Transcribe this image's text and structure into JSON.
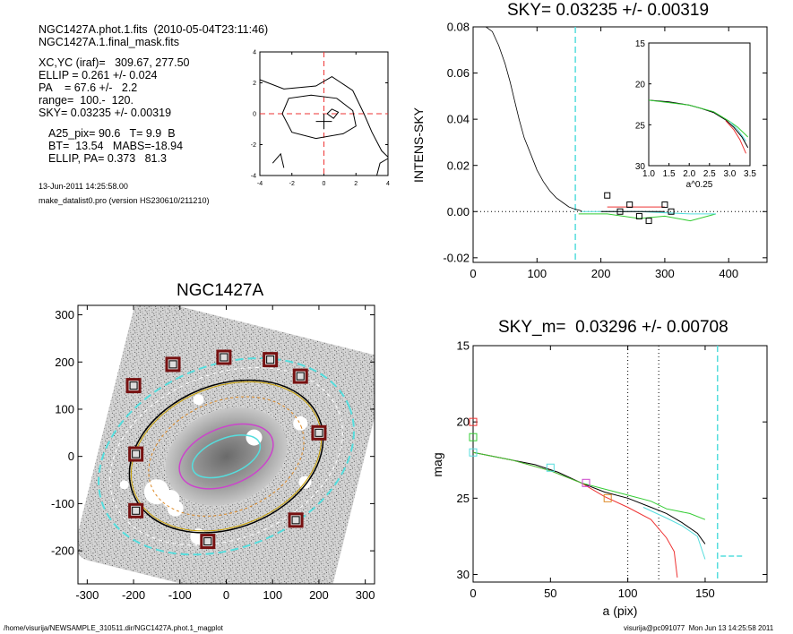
{
  "header": {
    "line1": "NGC1427A.phot.1.fits  (2010-05-04T23:11:46)",
    "line2": "NGC1427A.1.final_mask.fits",
    "line3": "XC,YC (iraf)=   309.67, 277.50",
    "line4": "ELLIP = 0.261 +/- 0.024",
    "line5": "PA    = 67.6 +/-   2.2",
    "line6": "range=  100.-  120.",
    "line7": "SKY= 0.03235 +/- 0.00319",
    "line8": "A25_pix= 90.6   T= 9.9  B",
    "line9": "BT=  13.54   MABS=-18.94",
    "line10": "ELLIP, PA= 0.373   81.3",
    "date": "13-Jun-2011 14:25:58.00",
    "program": "make_datalist0.pro (version HS230610/211210)"
  },
  "footer": {
    "path": "/home/visurija/NEWSAMPLE_310511.dir/NGC1427A.phot.1_magplot",
    "user": "visurija@pc091077  Mon Jun 13 14:25:58 2011"
  },
  "colors": {
    "cyan": "#55dddd",
    "red": "#ee3333",
    "green": "#33cc33",
    "magenta": "#cc44cc",
    "orange": "#dd8822",
    "dark_red": "#771111"
  },
  "chart_data": [
    {
      "id": "contour",
      "type": "contour",
      "xlim": [
        -4,
        4
      ],
      "ylim": [
        -4,
        4
      ],
      "xticks": [
        "-4",
        "-2",
        "0",
        "2",
        "4"
      ],
      "yticks": [
        "-4",
        "-2",
        "0",
        "2",
        "4"
      ]
    },
    {
      "id": "sky_profile",
      "type": "line",
      "title": "SKY= 0.03235 +/- 0.00319",
      "xlabel": "",
      "ylabel": "INTENS-SKY",
      "xlim": [
        0,
        460
      ],
      "ylim": [
        -0.022,
        0.08
      ],
      "xticks": [
        "0",
        "100",
        "200",
        "300",
        "400"
      ],
      "yticks": [
        "-0.02",
        "0.00",
        "0.02",
        "0.04",
        "0.06",
        "0.08"
      ],
      "sky_marker_x": 160,
      "profile": [
        [
          20,
          0.08
        ],
        [
          30,
          0.078
        ],
        [
          40,
          0.072
        ],
        [
          50,
          0.064
        ],
        [
          58,
          0.056
        ],
        [
          65,
          0.048
        ],
        [
          72,
          0.04
        ],
        [
          80,
          0.032
        ],
        [
          90,
          0.025
        ],
        [
          100,
          0.018
        ],
        [
          110,
          0.013
        ],
        [
          120,
          0.009
        ],
        [
          130,
          0.006
        ],
        [
          140,
          0.004
        ],
        [
          150,
          0.002
        ],
        [
          160,
          0.001
        ],
        [
          170,
          0.0003
        ]
      ],
      "segments": [
        {
          "color": "green",
          "points": [
            [
              165,
              -0.001
            ],
            [
              210,
              -0.001
            ],
            [
              260,
              -0.003
            ],
            [
              300,
              -0.002
            ],
            [
              340,
              -0.004
            ],
            [
              380,
              -0.001
            ]
          ]
        },
        {
          "color": "red",
          "points": [
            [
              210,
              0.002
            ],
            [
              300,
              0.002
            ]
          ]
        },
        {
          "color": "cyan",
          "points": [
            [
              170,
              0.0
            ],
            [
              260,
              0.0
            ],
            [
              340,
              -0.001
            ],
            [
              380,
              -0.001
            ]
          ]
        },
        {
          "color": "black",
          "points": [
            [
              200,
              0.0
            ],
            [
              300,
              0.0
            ]
          ]
        }
      ],
      "squares": [
        [
          210,
          0.007
        ],
        [
          245,
          0.003
        ],
        [
          230,
          0.0
        ],
        [
          260,
          -0.002
        ],
        [
          275,
          -0.004
        ],
        [
          300,
          0.003
        ],
        [
          310,
          0.0
        ]
      ],
      "inset": {
        "xlabel": "a^0.25",
        "xlim": [
          1.0,
          3.5
        ],
        "ylim": [
          15,
          30
        ],
        "xticks": [
          "1.0",
          "1.5",
          "2.0",
          "2.5",
          "3.0",
          "3.5"
        ],
        "yticks": [
          "15",
          "20",
          "25",
          "30"
        ],
        "curves": [
          {
            "color": "black",
            "points": [
              [
                1.0,
                22.0
              ],
              [
                1.5,
                22.2
              ],
              [
                2.0,
                22.6
              ],
              [
                2.3,
                23.0
              ],
              [
                2.6,
                23.5
              ],
              [
                2.9,
                24.4
              ],
              [
                3.1,
                25.3
              ],
              [
                3.3,
                26.5
              ],
              [
                3.45,
                27.8
              ]
            ]
          },
          {
            "color": "red",
            "points": [
              [
                2.9,
                24.5
              ],
              [
                3.1,
                25.6
              ],
              [
                3.25,
                26.8
              ],
              [
                3.4,
                28.5
              ]
            ]
          },
          {
            "color": "green",
            "points": [
              [
                1.0,
                22.0
              ],
              [
                2.0,
                22.6
              ],
              [
                2.6,
                23.4
              ],
              [
                3.0,
                24.6
              ],
              [
                3.2,
                25.3
              ],
              [
                3.45,
                26.5
              ]
            ]
          },
          {
            "color": "cyan",
            "points": [
              [
                3.0,
                24.6
              ],
              [
                3.2,
                25.6
              ],
              [
                3.4,
                27.0
              ]
            ]
          }
        ]
      }
    },
    {
      "id": "galaxy_image",
      "type": "image",
      "title": "NGC1427A",
      "xlim": [
        -320,
        320
      ],
      "ylim": [
        -270,
        320
      ],
      "xticks": [
        "-300",
        "-200",
        "-100",
        "0",
        "100",
        "200",
        "300"
      ],
      "yticks": [
        "-200",
        "-100",
        "0",
        "100",
        "200",
        "300"
      ],
      "sky_boxes": [
        [
          -200,
          150
        ],
        [
          -115,
          195
        ],
        [
          -5,
          210
        ],
        [
          95,
          205
        ],
        [
          160,
          170
        ],
        [
          200,
          50
        ],
        [
          -195,
          5
        ],
        [
          -195,
          -115
        ],
        [
          150,
          -135
        ],
        [
          -40,
          -180
        ]
      ]
    },
    {
      "id": "mag_profile",
      "type": "line",
      "title": "SKY_m=  0.03296 +/- 0.00708",
      "xlabel": "a (pix)",
      "ylabel": "mag",
      "xlim": [
        0,
        190
      ],
      "ylim": [
        15,
        30.5
      ],
      "xticks": [
        "0",
        "50",
        "100",
        "150"
      ],
      "yticks": [
        "15",
        "20",
        "25",
        "30"
      ],
      "vlines_dotted": [
        100,
        120
      ],
      "sky_marker_x": 158,
      "curves": [
        {
          "color": "black",
          "points": [
            [
              0,
              22.0
            ],
            [
              10,
              22.2
            ],
            [
              25,
              22.5
            ],
            [
              40,
              22.8
            ],
            [
              55,
              23.3
            ],
            [
              70,
              24.0
            ],
            [
              85,
              24.6
            ],
            [
              100,
              25.0
            ],
            [
              115,
              25.6
            ],
            [
              125,
              26.0
            ],
            [
              135,
              26.6
            ],
            [
              145,
              27.3
            ],
            [
              150,
              28.0
            ]
          ]
        },
        {
          "color": "red",
          "points": [
            [
              0,
              22.0
            ],
            [
              25,
              22.5
            ],
            [
              50,
              23.2
            ],
            [
              70,
              24.0
            ],
            [
              85,
              24.9
            ],
            [
              100,
              25.6
            ],
            [
              115,
              26.4
            ],
            [
              125,
              27.6
            ],
            [
              130,
              28.5
            ],
            [
              132,
              30.2
            ]
          ]
        },
        {
          "color": "green",
          "points": [
            [
              0,
              22.0
            ],
            [
              25,
              22.5
            ],
            [
              50,
              23.2
            ],
            [
              70,
              24.0
            ],
            [
              85,
              24.4
            ],
            [
              100,
              24.8
            ],
            [
              115,
              25.2
            ],
            [
              125,
              25.7
            ],
            [
              140,
              26.0
            ],
            [
              150,
              26.4
            ]
          ]
        },
        {
          "color": "cyan",
          "points": [
            [
              110,
              25.6
            ],
            [
              125,
              26.3
            ],
            [
              135,
              26.8
            ],
            [
              145,
              27.5
            ],
            [
              150,
              29.0
            ]
          ]
        }
      ],
      "markers": [
        {
          "color": "red",
          "x": 0,
          "y": 20.0
        },
        {
          "color": "green",
          "x": 0,
          "y": 21.0
        },
        {
          "color": "cyan",
          "x": 0,
          "y": 22.0
        },
        {
          "color": "magenta",
          "x": 73,
          "y": 24.0
        },
        {
          "color": "cyan",
          "x": 50,
          "y": 23.0
        },
        {
          "color": "orange",
          "x": 87,
          "y": 25.0
        }
      ],
      "sky_level": {
        "x": [
          160,
          175
        ],
        "y": 28.8
      }
    }
  ]
}
